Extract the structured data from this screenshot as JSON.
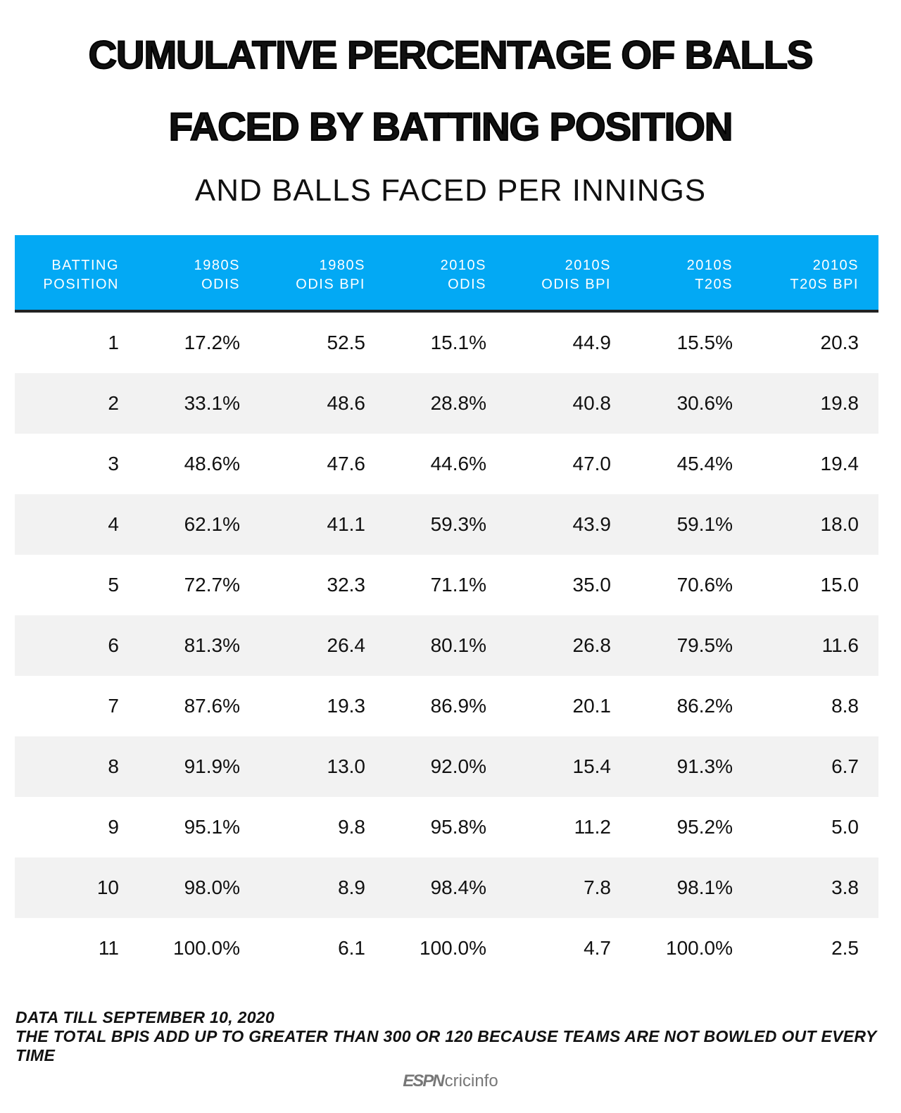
{
  "title_lines": [
    "CUMULATIVE PERCENTAGE OF BALLS",
    "FACED BY BATTING POSITION"
  ],
  "subtitle": "AND BALLS FACED PER INNINGS",
  "colors": {
    "header": "#03a9f4",
    "alt_row": "#f2f2f2",
    "header_rule": "#222222"
  },
  "chart_data": {
    "type": "table",
    "columns": [
      "BATTING\nPOSITION",
      "1980S\nODIS",
      "1980S\nODIS BPI",
      "2010S\nODIS",
      "2010S\nODIS BPI",
      "2010S\nT20S",
      "2010S\nT20S BPI"
    ],
    "rows": [
      [
        "1",
        "17.2%",
        "52.5",
        "15.1%",
        "44.9",
        "15.5%",
        "20.3"
      ],
      [
        "2",
        "33.1%",
        "48.6",
        "28.8%",
        "40.8",
        "30.6%",
        "19.8"
      ],
      [
        "3",
        "48.6%",
        "47.6",
        "44.6%",
        "47.0",
        "45.4%",
        "19.4"
      ],
      [
        "4",
        "62.1%",
        "41.1",
        "59.3%",
        "43.9",
        "59.1%",
        "18.0"
      ],
      [
        "5",
        "72.7%",
        "32.3",
        "71.1%",
        "35.0",
        "70.6%",
        "15.0"
      ],
      [
        "6",
        "81.3%",
        "26.4",
        "80.1%",
        "26.8",
        "79.5%",
        "11.6"
      ],
      [
        "7",
        "87.6%",
        "19.3",
        "86.9%",
        "20.1",
        "86.2%",
        "8.8"
      ],
      [
        "8",
        "91.9%",
        "13.0",
        "92.0%",
        "15.4",
        "91.3%",
        "6.7"
      ],
      [
        "9",
        "95.1%",
        "9.8",
        "95.8%",
        "11.2",
        "95.2%",
        "5.0"
      ],
      [
        "10",
        "98.0%",
        "8.9",
        "98.4%",
        "7.8",
        "98.1%",
        "3.8"
      ],
      [
        "11",
        "100.0%",
        "6.1",
        "100.0%",
        "4.7",
        "100.0%",
        "2.5"
      ]
    ]
  },
  "notes": [
    "DATA TILL SEPTEMBER 10, 2020",
    "THE TOTAL BPIS ADD UP TO GREATER THAN 300 OR 120 BECAUSE TEAMS ARE NOT BOWLED OUT EVERY TIME"
  ],
  "logo": {
    "espn": "ESPN",
    "cricinfo": "cricinfo"
  }
}
